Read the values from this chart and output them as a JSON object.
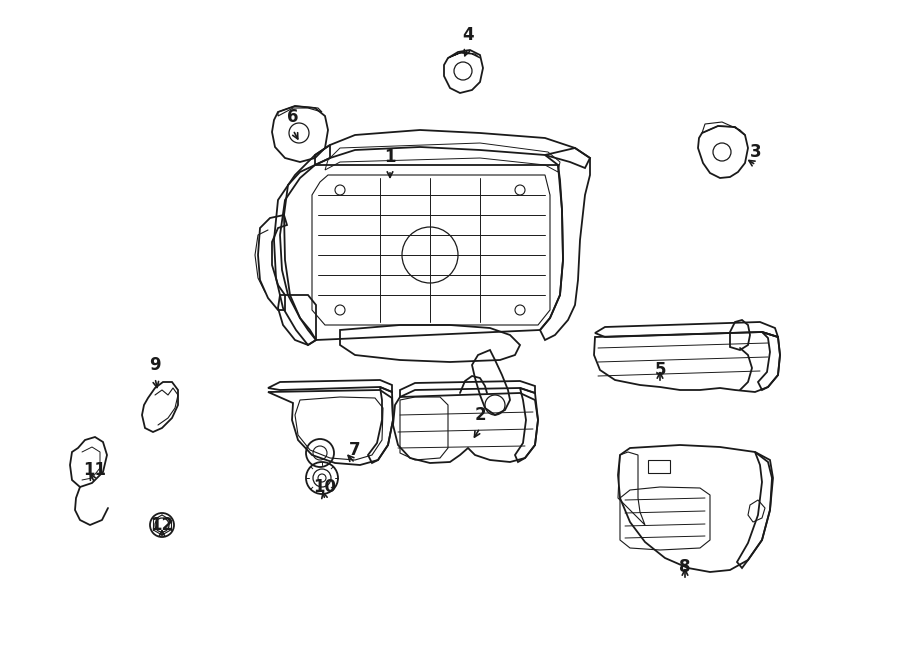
{
  "background_color": "#ffffff",
  "line_color": "#1a1a1a",
  "figsize": [
    9.0,
    6.61
  ],
  "dpi": 100,
  "border_color": "#888888",
  "parts": {
    "1_arrow": [
      390,
      175,
      390,
      210
    ],
    "2_arrow": [
      480,
      432,
      480,
      445
    ],
    "3_arrow": [
      747,
      168,
      735,
      163
    ],
    "4_arrow": [
      468,
      53,
      468,
      68
    ],
    "5_arrow": [
      660,
      387,
      660,
      370
    ],
    "6_arrow": [
      290,
      133,
      303,
      140
    ],
    "7_arrow": [
      355,
      468,
      355,
      455
    ],
    "8_arrow": [
      685,
      583,
      685,
      568
    ],
    "9_arrow": [
      155,
      382,
      160,
      395
    ],
    "10_arrow": [
      325,
      505,
      325,
      490
    ],
    "11_arrow": [
      95,
      487,
      95,
      473
    ],
    "12_arrow": [
      165,
      542,
      165,
      528
    ]
  }
}
